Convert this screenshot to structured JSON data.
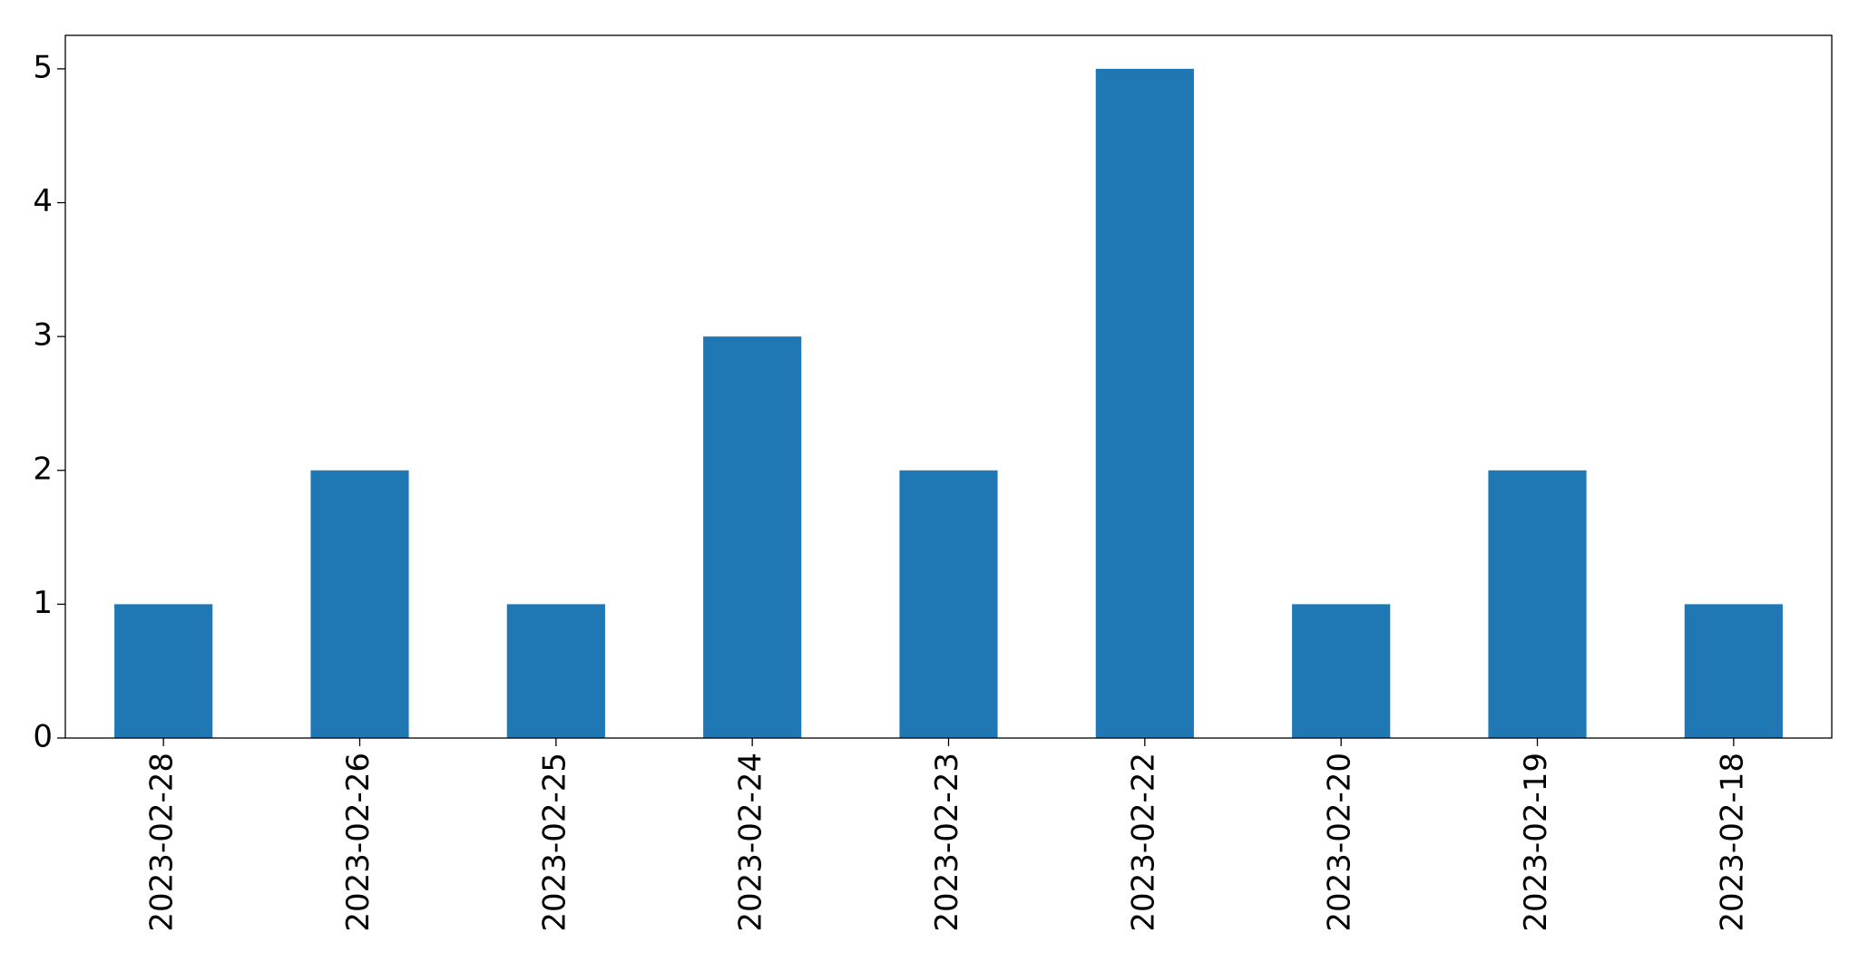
{
  "chart_data": {
    "type": "bar",
    "categories": [
      "2023-02-28",
      "2023-02-26",
      "2023-02-25",
      "2023-02-24",
      "2023-02-23",
      "2023-02-22",
      "2023-02-20",
      "2023-02-19",
      "2023-02-18"
    ],
    "values": [
      1,
      2,
      1,
      3,
      2,
      5,
      1,
      2,
      1
    ],
    "color": "#1f77b4",
    "ylim": [
      0,
      5.25
    ],
    "yticks": [
      0,
      1,
      2,
      3,
      4,
      5
    ],
    "grid": false
  }
}
